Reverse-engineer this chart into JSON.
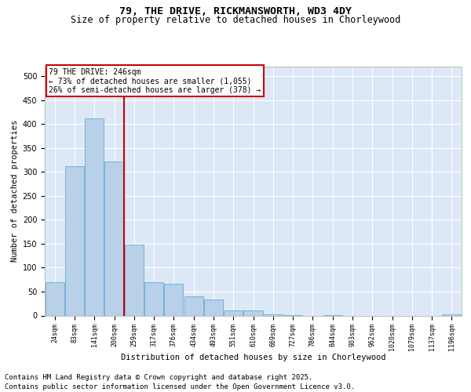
{
  "title1": "79, THE DRIVE, RICKMANSWORTH, WD3 4DY",
  "title2": "Size of property relative to detached houses in Chorleywood",
  "xlabel": "Distribution of detached houses by size in Chorleywood",
  "ylabel": "Number of detached properties",
  "categories": [
    "24sqm",
    "83sqm",
    "141sqm",
    "200sqm",
    "259sqm",
    "317sqm",
    "376sqm",
    "434sqm",
    "493sqm",
    "551sqm",
    "610sqm",
    "669sqm",
    "727sqm",
    "786sqm",
    "844sqm",
    "903sqm",
    "962sqm",
    "1020sqm",
    "1079sqm",
    "1137sqm",
    "1196sqm"
  ],
  "values": [
    70,
    312,
    412,
    322,
    148,
    70,
    67,
    40,
    33,
    10,
    10,
    2,
    1,
    0,
    1,
    0,
    0,
    0,
    0,
    0,
    2
  ],
  "bar_color": "#b8d0e8",
  "bar_edge_color": "#6aaad4",
  "vline_x": 3.5,
  "vline_color": "#cc0000",
  "annotation_title": "79 THE DRIVE: 246sqm",
  "annotation_line1": "← 73% of detached houses are smaller (1,055)",
  "annotation_line2": "26% of semi-detached houses are larger (378) →",
  "annotation_box_color": "#cc0000",
  "annotation_bg": "#ffffff",
  "footer": "Contains HM Land Registry data © Crown copyright and database right 2025.\nContains public sector information licensed under the Open Government Licence v3.0.",
  "ylim": [
    0,
    520
  ],
  "yticks": [
    0,
    50,
    100,
    150,
    200,
    250,
    300,
    350,
    400,
    450,
    500
  ],
  "bg_color": "#dce8f5",
  "grid_color": "#ffffff",
  "title_fontsize": 9.5,
  "subtitle_fontsize": 8.5,
  "footer_fontsize": 6.5,
  "tick_fontsize": 6,
  "ylabel_fontsize": 7.5,
  "xlabel_fontsize": 7.5
}
